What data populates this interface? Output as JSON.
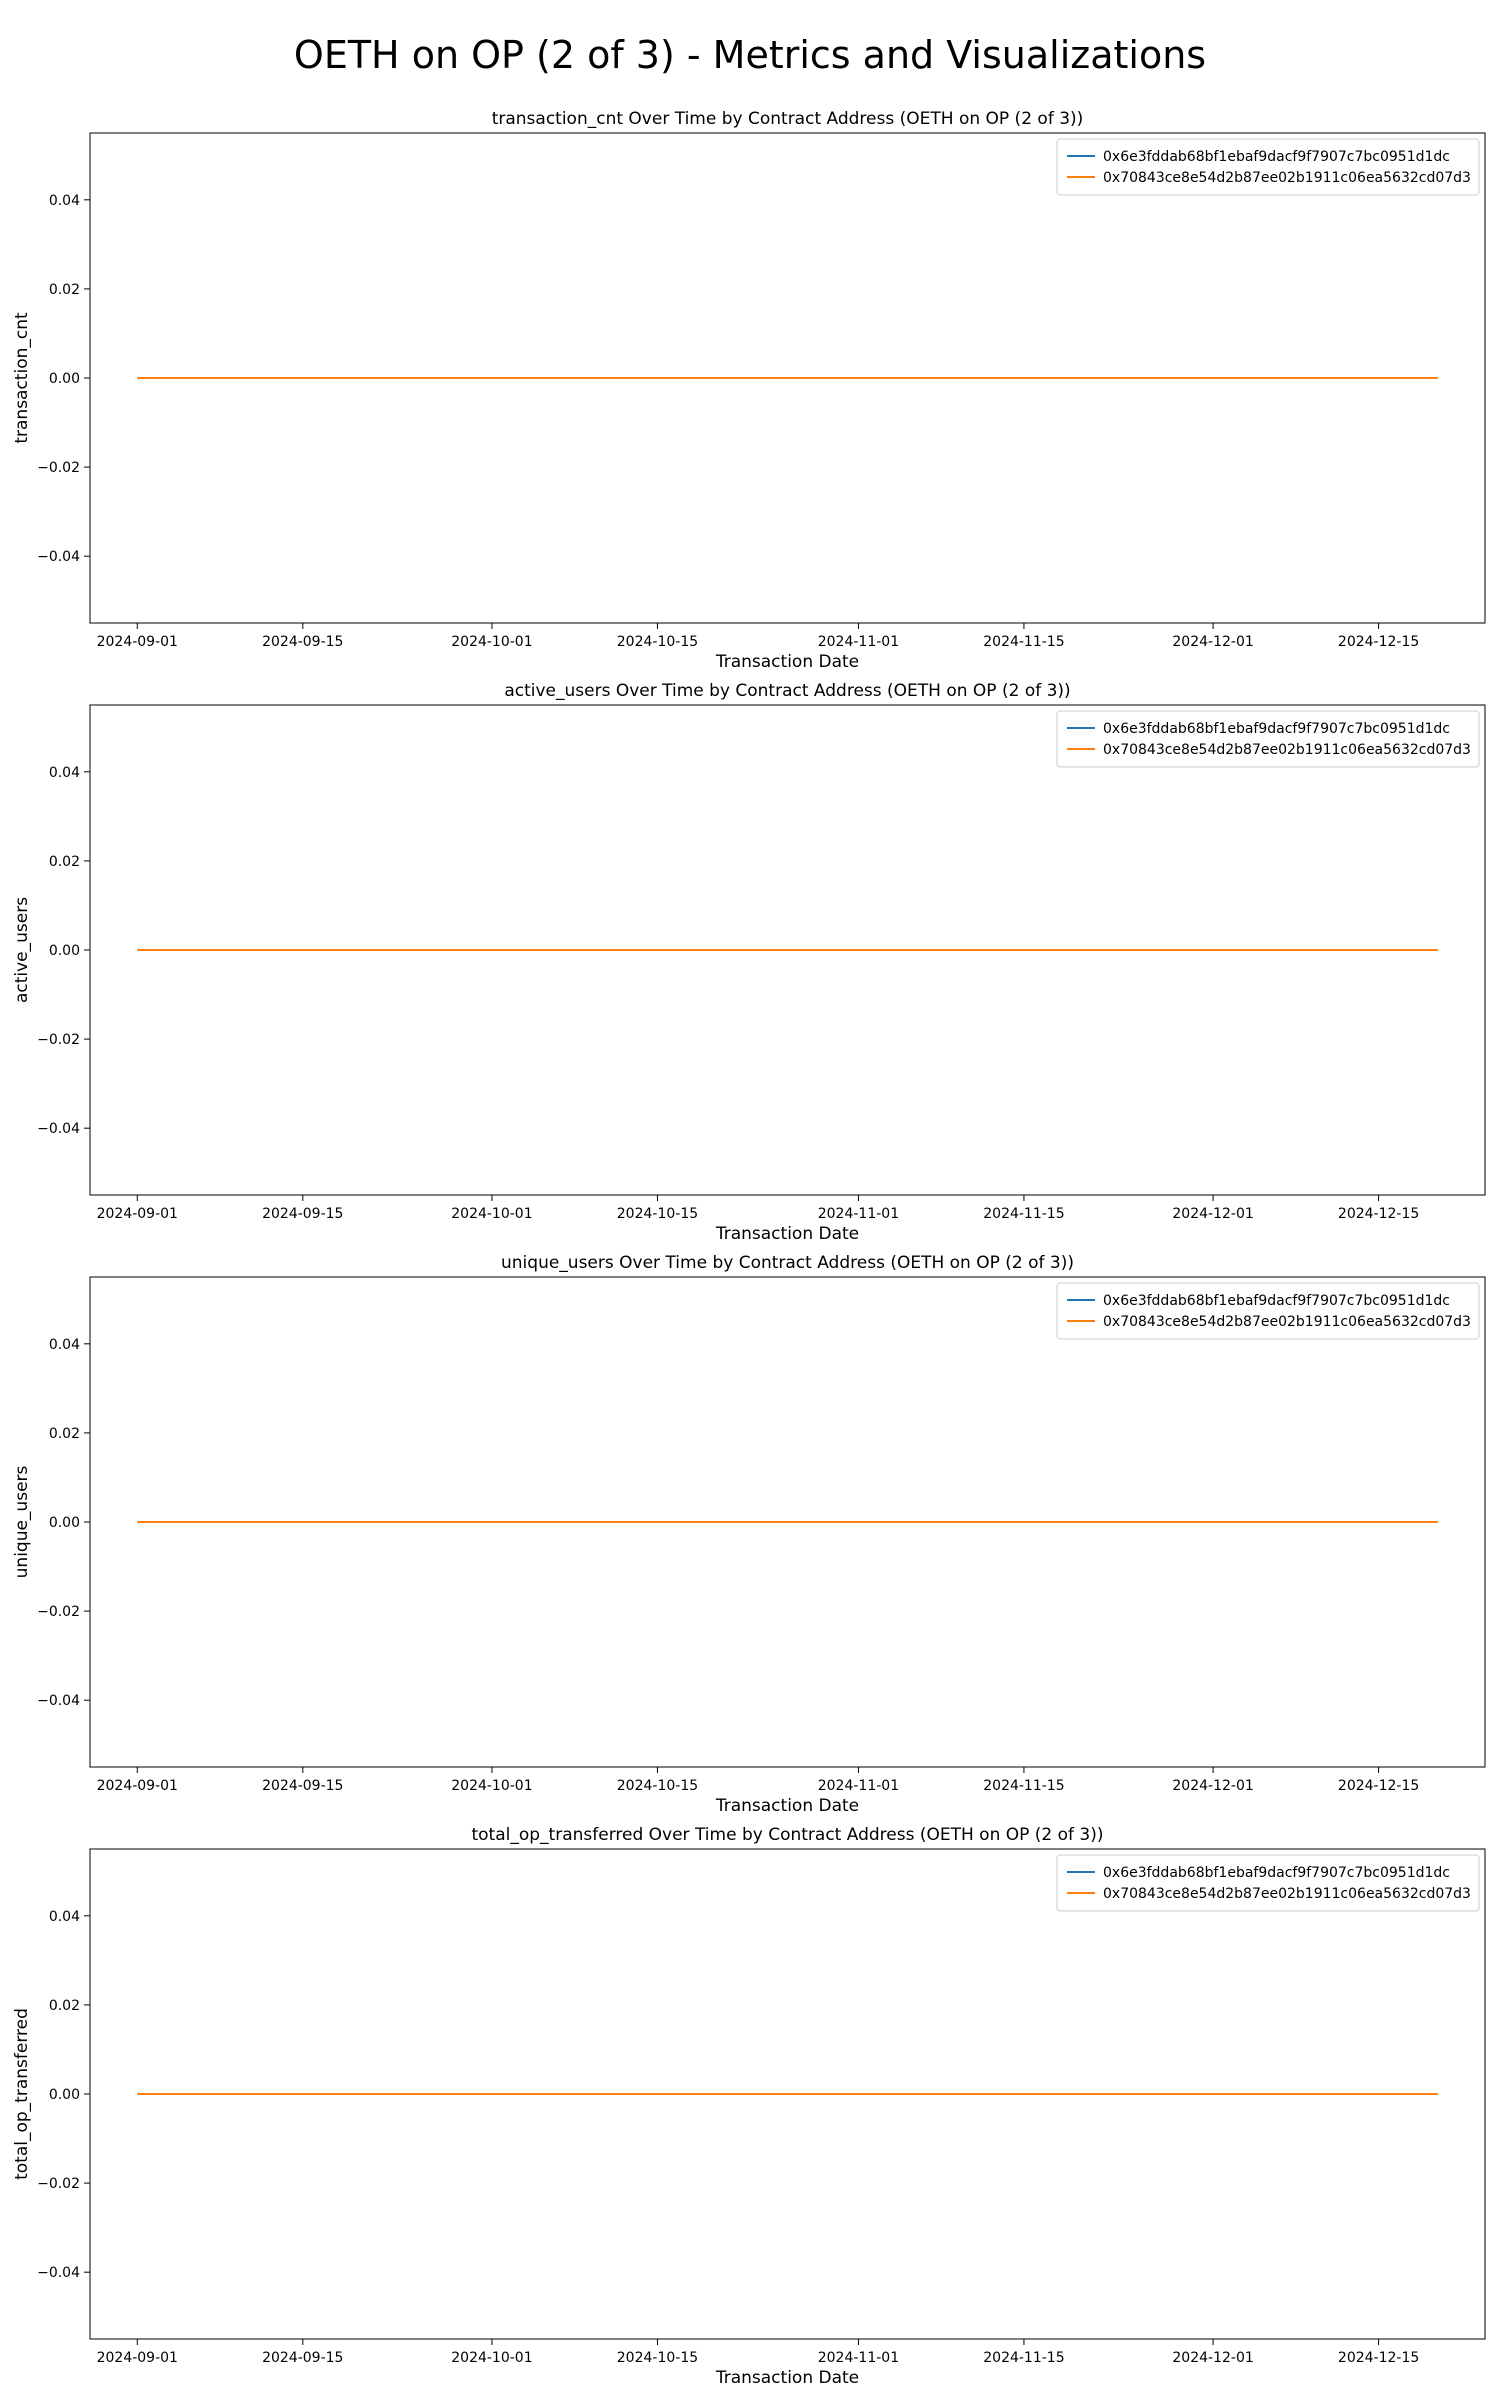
{
  "figure": {
    "title": "OETH on OP (2 of 3) - Metrics and Visualizations"
  },
  "colors": {
    "series_0": "#1f77b4",
    "series_1": "#ff7f0e"
  },
  "chart_data": [
    {
      "type": "line",
      "title": "transaction_cnt Over Time by Contract Address (OETH on OP (2 of 3))",
      "xlabel": "Transaction Date",
      "ylabel": "transaction_cnt",
      "x_range": [
        "2024-09-01",
        "2024-12-20"
      ],
      "xlim": [
        "2024-08-28",
        "2024-12-24"
      ],
      "ylim": [
        -0.055,
        0.055
      ],
      "xticks": [
        "2024-09-01",
        "2024-09-15",
        "2024-10-01",
        "2024-10-15",
        "2024-11-01",
        "2024-11-15",
        "2024-12-01",
        "2024-12-15"
      ],
      "yticks": [
        "0.04",
        "0.02",
        "0.00",
        "−0.02",
        "−0.04"
      ],
      "legend_position": "top-right",
      "grid": false,
      "series": [
        {
          "name": "0x6e3fddab68bf1ebaf9dacf9f7907c7bc0951d1dc",
          "x": [
            "2024-09-01",
            "2024-12-20"
          ],
          "y": [
            0,
            0
          ]
        },
        {
          "name": "0x70843ce8e54d2b87ee02b1911c06ea5632cd07d3",
          "x": [
            "2024-09-01",
            "2024-12-20"
          ],
          "y": [
            0,
            0
          ]
        }
      ]
    },
    {
      "type": "line",
      "title": "active_users Over Time by Contract Address (OETH on OP (2 of 3))",
      "xlabel": "Transaction Date",
      "ylabel": "active_users",
      "x_range": [
        "2024-09-01",
        "2024-12-20"
      ],
      "xlim": [
        "2024-08-28",
        "2024-12-24"
      ],
      "ylim": [
        -0.055,
        0.055
      ],
      "xticks": [
        "2024-09-01",
        "2024-09-15",
        "2024-10-01",
        "2024-10-15",
        "2024-11-01",
        "2024-11-15",
        "2024-12-01",
        "2024-12-15"
      ],
      "yticks": [
        "0.04",
        "0.02",
        "0.00",
        "−0.02",
        "−0.04"
      ],
      "legend_position": "top-right",
      "grid": false,
      "series": [
        {
          "name": "0x6e3fddab68bf1ebaf9dacf9f7907c7bc0951d1dc",
          "x": [
            "2024-09-01",
            "2024-12-20"
          ],
          "y": [
            0,
            0
          ]
        },
        {
          "name": "0x70843ce8e54d2b87ee02b1911c06ea5632cd07d3",
          "x": [
            "2024-09-01",
            "2024-12-20"
          ],
          "y": [
            0,
            0
          ]
        }
      ]
    },
    {
      "type": "line",
      "title": "unique_users Over Time by Contract Address (OETH on OP (2 of 3))",
      "xlabel": "Transaction Date",
      "ylabel": "unique_users",
      "x_range": [
        "2024-09-01",
        "2024-12-20"
      ],
      "xlim": [
        "2024-08-28",
        "2024-12-24"
      ],
      "ylim": [
        -0.055,
        0.055
      ],
      "xticks": [
        "2024-09-01",
        "2024-09-15",
        "2024-10-01",
        "2024-10-15",
        "2024-11-01",
        "2024-11-15",
        "2024-12-01",
        "2024-12-15"
      ],
      "yticks": [
        "0.04",
        "0.02",
        "0.00",
        "−0.02",
        "−0.04"
      ],
      "legend_position": "top-right",
      "grid": false,
      "series": [
        {
          "name": "0x6e3fddab68bf1ebaf9dacf9f7907c7bc0951d1dc",
          "x": [
            "2024-09-01",
            "2024-12-20"
          ],
          "y": [
            0,
            0
          ]
        },
        {
          "name": "0x70843ce8e54d2b87ee02b1911c06ea5632cd07d3",
          "x": [
            "2024-09-01",
            "2024-12-20"
          ],
          "y": [
            0,
            0
          ]
        }
      ]
    },
    {
      "type": "line",
      "title": "total_op_transferred Over Time by Contract Address (OETH on OP (2 of 3))",
      "xlabel": "Transaction Date",
      "ylabel": "total_op_transferred",
      "x_range": [
        "2024-09-01",
        "2024-12-20"
      ],
      "xlim": [
        "2024-08-28",
        "2024-12-24"
      ],
      "ylim": [
        -0.055,
        0.055
      ],
      "xticks": [
        "2024-09-01",
        "2024-09-15",
        "2024-10-01",
        "2024-10-15",
        "2024-11-01",
        "2024-11-15",
        "2024-12-01",
        "2024-12-15"
      ],
      "yticks": [
        "0.04",
        "0.02",
        "0.00",
        "−0.02",
        "−0.04"
      ],
      "legend_position": "top-right",
      "grid": false,
      "series": [
        {
          "name": "0x6e3fddab68bf1ebaf9dacf9f7907c7bc0951d1dc",
          "x": [
            "2024-09-01",
            "2024-12-20"
          ],
          "y": [
            0,
            0
          ]
        },
        {
          "name": "0x70843ce8e54d2b87ee02b1911c06ea5632cd07d3",
          "x": [
            "2024-09-01",
            "2024-12-20"
          ],
          "y": [
            0,
            0
          ]
        }
      ]
    }
  ]
}
